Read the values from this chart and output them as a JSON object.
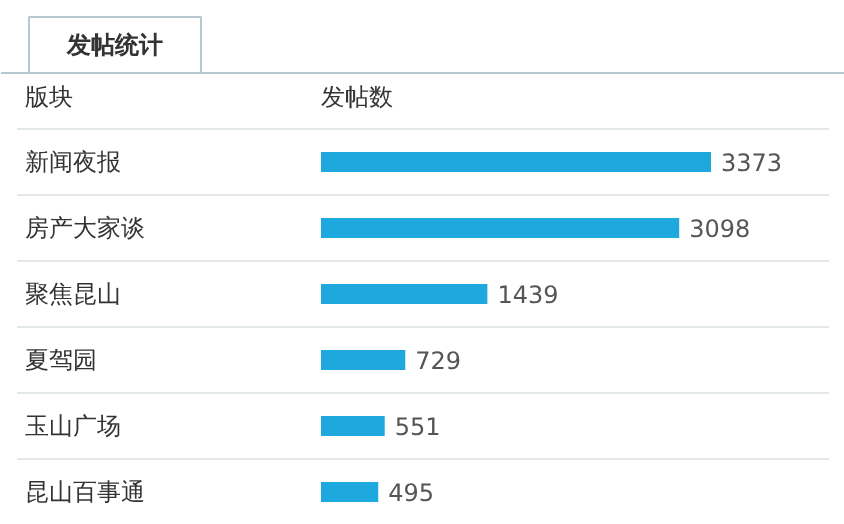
{
  "chart_data": {
    "type": "bar",
    "orientation": "horizontal",
    "title": "发帖统计",
    "ylabel": "版块",
    "xlabel": "发帖数",
    "categories": [
      "新闻夜报",
      "房产大家谈",
      "聚焦昆山",
      "夏驾园",
      "玉山广场",
      "昆山百事通"
    ],
    "values": [
      3373,
      3098,
      1439,
      729,
      551,
      495
    ],
    "color": "#1fa8dd",
    "data_labels": true,
    "grid": false
  }
}
